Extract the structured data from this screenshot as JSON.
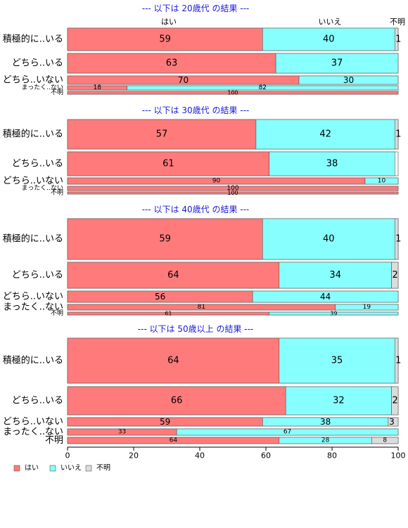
{
  "chart_data": {
    "type": "bar",
    "orientation": "horizontal-stacked",
    "legend_placement": "bottom-left",
    "colors": {
      "はい": "#ff7b7b",
      "いいえ": "#88ffff",
      "不明": "#dcdcdc",
      "title": "#1a1adb"
    },
    "xlim": [
      0,
      100
    ],
    "x_ticks": [
      "0",
      "20",
      "40",
      "60",
      "80",
      "100"
    ],
    "column_labels": [
      "はい",
      "いいえ",
      "不明"
    ],
    "legend": [
      "はい",
      "いいえ",
      "不明"
    ],
    "groups": [
      {
        "title": "--- 以下は 20歳代 の結果 ---",
        "rows": [
          {
            "label": "積極的に..いる",
            "values": [
              59,
              40,
              1
            ],
            "labels": [
              "59",
              "40",
              "1"
            ]
          },
          {
            "label": "どちら..いる",
            "values": [
              63,
              37,
              0
            ],
            "labels": [
              "63",
              "37",
              ""
            ]
          },
          {
            "label": "どちら..いない",
            "values": [
              70,
              30,
              0
            ],
            "labels": [
              "70",
              "30",
              ""
            ]
          },
          {
            "label": "まったく..ない",
            "values": [
              18,
              82,
              0
            ],
            "labels": [
              "18",
              "82",
              ""
            ]
          },
          {
            "label": "不明",
            "values": [
              100,
              0,
              0
            ],
            "labels": [
              "100",
              "",
              ""
            ]
          }
        ]
      },
      {
        "title": "--- 以下は 30歳代 の結果 ---",
        "rows": [
          {
            "label": "積極的に..いる",
            "values": [
              57,
              42,
              1
            ],
            "labels": [
              "57",
              "42",
              "1"
            ]
          },
          {
            "label": "どちら..いる",
            "values": [
              61,
              38,
              0
            ],
            "labels": [
              "61",
              "38",
              ""
            ]
          },
          {
            "label": "どちら..いない",
            "values": [
              90,
              10,
              0
            ],
            "labels": [
              "90",
              "10",
              ""
            ]
          },
          {
            "label": "まったく..ない",
            "values": [
              100,
              0,
              0
            ],
            "labels": [
              "100",
              "",
              ""
            ]
          },
          {
            "label": "不明",
            "values": [
              100,
              0,
              0
            ],
            "labels": [
              "100",
              "",
              ""
            ]
          }
        ]
      },
      {
        "title": "--- 以下は 40歳代 の結果 ---",
        "rows": [
          {
            "label": "積極的に..いる",
            "values": [
              59,
              40,
              1
            ],
            "labels": [
              "59",
              "40",
              "1"
            ]
          },
          {
            "label": "どちら..いる",
            "values": [
              64,
              34,
              2
            ],
            "labels": [
              "64",
              "34",
              "2"
            ]
          },
          {
            "label": "どちら..いない",
            "values": [
              56,
              44,
              0
            ],
            "labels": [
              "56",
              "44",
              ""
            ]
          },
          {
            "label": "まったく..ない",
            "values": [
              81,
              19,
              0
            ],
            "labels": [
              "81",
              "19",
              ""
            ]
          },
          {
            "label": "不明",
            "values": [
              61,
              39,
              0
            ],
            "labels": [
              "61",
              "39",
              ""
            ]
          }
        ]
      },
      {
        "title": "--- 以下は 50歳以上 の結果 ---",
        "rows": [
          {
            "label": "積極的に..いる",
            "values": [
              64,
              35,
              1
            ],
            "labels": [
              "64",
              "35",
              "1"
            ]
          },
          {
            "label": "どちら..いる",
            "values": [
              66,
              32,
              2
            ],
            "labels": [
              "66",
              "32",
              "2"
            ]
          },
          {
            "label": "どちら..いない",
            "values": [
              59,
              38,
              3
            ],
            "labels": [
              "59",
              "38",
              "3"
            ]
          },
          {
            "label": "まったく..ない",
            "values": [
              33,
              67,
              0
            ],
            "labels": [
              "33",
              "67",
              ""
            ]
          },
          {
            "label": "不明",
            "values": [
              64,
              28,
              8
            ],
            "labels": [
              "64",
              "28",
              "8"
            ]
          }
        ]
      }
    ]
  }
}
